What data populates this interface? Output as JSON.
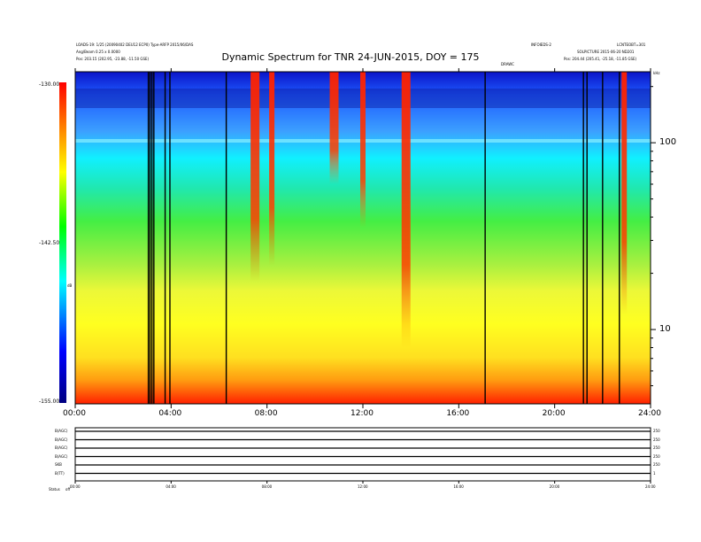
{
  "header": {
    "left_line1": "LOADS-19: 1/25 (20090402 DEU12 ECP0) Type-ARFP 2015/06/DAS",
    "left_line2": "Ang/Beam 0.25 x 0.0000",
    "left_line3": "Pos: 203.15 (202.95, -23.88, -11.50 GSE)",
    "right_line1": "INFOIEDS-2",
    "right_line1b": "LCNTEOBT=301",
    "right_line2": "SOLPICTURE 2015-06-20 ND201",
    "right_line3": "Pos: 204.44 (205.41, -25.18, -11.85 GSE)",
    "right_mid": "DRAWC",
    "right_unit": "kHz"
  },
  "chart_data": {
    "type": "heatmap",
    "title": "Dynamic Spectrum for TNR 24-JUN-2015, DOY = 175",
    "xlabel": "",
    "ylabel": "",
    "x_ticks": [
      "00:00",
      "04:00",
      "08:00",
      "12:00",
      "16:00",
      "20:00",
      "24:00"
    ],
    "x_range_hours": [
      0,
      24
    ],
    "y_scale": "log",
    "y_ticks": [
      "100",
      "10"
    ],
    "y_tick_values": [
      100,
      10
    ],
    "y_range_khz": [
      4,
      240
    ],
    "colorbar": {
      "label": "dB",
      "ticks": [
        "-130.00",
        "-142.50",
        "-155.00"
      ],
      "range_db": [
        -155,
        -130
      ],
      "colors": [
        "#000080",
        "#0000ff",
        "#00ffff",
        "#00ff00",
        "#ffff00",
        "#ff8000",
        "#ff0000"
      ]
    },
    "data_gaps_hours": [
      3.05,
      3.12,
      3.2,
      3.28,
      3.75,
      3.95,
      6.3,
      17.1,
      21.2,
      21.35,
      22.0,
      22.7
    ],
    "bursts": [
      {
        "center_hours": 7.5,
        "low_khz": 18,
        "intensity": "strong"
      },
      {
        "center_hours": 8.2,
        "low_khz": 22,
        "intensity": "medium"
      },
      {
        "center_hours": 10.8,
        "low_khz": 60,
        "intensity": "strong"
      },
      {
        "center_hours": 12.0,
        "low_khz": 35,
        "intensity": "medium"
      },
      {
        "center_hours": 13.8,
        "low_khz": 8,
        "intensity": "strong"
      },
      {
        "center_hours": 22.9,
        "low_khz": 12,
        "intensity": "medium"
      }
    ]
  },
  "panels": {
    "labels": [
      "B(AGC)",
      "B(AGC)",
      "B(AGC)",
      "B(AGC)",
      "SKB",
      "B(TT)"
    ],
    "right_values": [
      "250",
      "250",
      "250",
      "250",
      "250",
      "1"
    ],
    "x_ticks": [
      "00:00",
      "04:00",
      "08:00",
      "12:00",
      "16:00",
      "20:00",
      "24:00"
    ],
    "status_label": "Status",
    "status_code": "off"
  }
}
